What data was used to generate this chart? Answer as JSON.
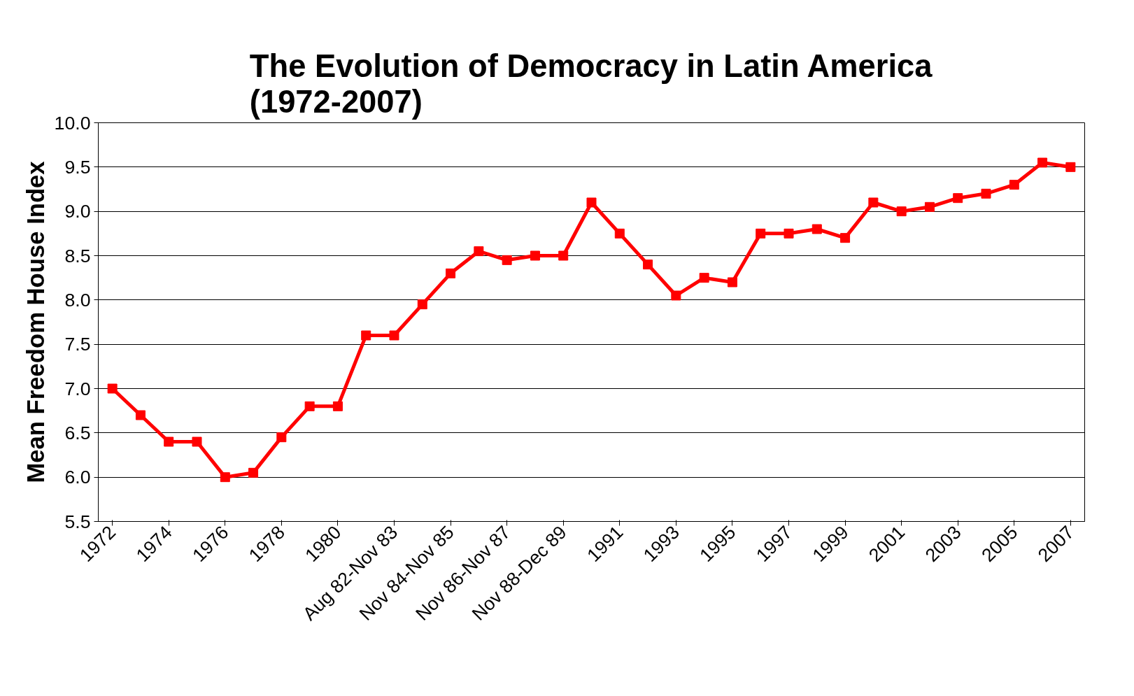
{
  "chart_data": {
    "type": "line",
    "title": "The Evolution of Democracy in Latin America\n(1972-2007)",
    "ylabel": "Mean Freedom House Index",
    "categories": [
      "1972",
      null,
      "1974",
      null,
      "1976",
      null,
      "1978",
      null,
      "1980",
      null,
      "Aug 82-Nov 83",
      null,
      "Nov 84-Nov 85",
      null,
      "Nov 86-Nov 87",
      null,
      "Nov 88-Dec 89",
      null,
      "1991",
      null,
      "1993",
      null,
      "1995",
      null,
      "1997",
      null,
      "1999",
      null,
      "2001",
      null,
      "2003",
      null,
      "2005",
      null,
      "2007"
    ],
    "series": [
      {
        "color": "#ff0000",
        "values": [
          7.0,
          6.7,
          6.4,
          6.4,
          6.0,
          6.05,
          6.45,
          6.8,
          6.8,
          7.6,
          7.6,
          7.95,
          8.3,
          8.55,
          8.45,
          8.5,
          8.5,
          9.1,
          8.75,
          8.4,
          8.05,
          8.25,
          8.2,
          8.75,
          8.75,
          8.8,
          8.7,
          9.1,
          9.0,
          9.05,
          9.15,
          9.2,
          9.3,
          9.55,
          9.5
        ]
      }
    ],
    "ylim": [
      5.5,
      10.0
    ],
    "yticks": [
      5.5,
      {
        "value": 6.0,
        "label": "6.0"
      },
      6.5,
      {
        "value": 7.0,
        "label": "7.0"
      },
      7.5,
      {
        "value": 8.0,
        "label": "8.0"
      },
      8.5,
      {
        "value": 9.0,
        "label": "9.0"
      },
      9.5,
      {
        "value": 10.0,
        "label": "10.0"
      }
    ],
    "grid": "y",
    "marker": "square",
    "line_style": "solid"
  }
}
